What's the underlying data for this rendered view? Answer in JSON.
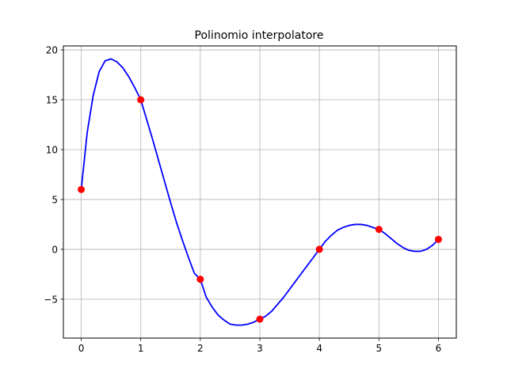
{
  "chart_data": {
    "type": "line",
    "title": "Polinomio interpolatore",
    "xlabel": "",
    "ylabel": "",
    "xlim": [
      -0.3,
      6.3
    ],
    "ylim": [
      -8.9,
      20.4
    ],
    "xticks": [
      0,
      1,
      2,
      3,
      4,
      5,
      6
    ],
    "yticks": [
      -5,
      0,
      5,
      10,
      15,
      20
    ],
    "ytick_labels": [
      "−5",
      "0",
      "5",
      "10",
      "15",
      "20"
    ],
    "grid": true,
    "series": [
      {
        "kind": "line",
        "color": "#0000ff",
        "x": [
          0,
          0.1,
          0.2,
          0.3,
          0.4,
          0.5,
          0.6,
          0.7,
          0.8,
          0.9,
          1.0,
          1.1,
          1.2,
          1.3,
          1.4,
          1.5,
          1.6,
          1.7,
          1.8,
          1.9,
          2.0,
          2.1,
          2.2,
          2.3,
          2.4,
          2.5,
          2.6,
          2.7,
          2.8,
          2.9,
          3.0,
          3.1,
          3.2,
          3.3,
          3.4,
          3.5,
          3.6,
          3.7,
          3.8,
          3.9,
          4.0,
          4.1,
          4.2,
          4.3,
          4.4,
          4.5,
          4.6,
          4.7,
          4.8,
          4.9,
          5.0,
          5.1,
          5.2,
          5.3,
          5.4,
          5.5,
          5.6,
          5.7,
          5.8,
          5.9,
          6.0
        ],
        "y": [
          6.0,
          11.7,
          15.4,
          17.8,
          18.9,
          19.1,
          18.8,
          18.2,
          17.3,
          16.2,
          15.0,
          13.0,
          11.0,
          8.9,
          6.8,
          4.7,
          2.7,
          0.9,
          -0.8,
          -2.4,
          -3.0,
          -4.8,
          -5.8,
          -6.6,
          -7.1,
          -7.5,
          -7.6,
          -7.6,
          -7.5,
          -7.3,
          -7.0,
          -6.7,
          -6.2,
          -5.5,
          -4.8,
          -4.0,
          -3.2,
          -2.4,
          -1.6,
          -0.8,
          0.0,
          0.8,
          1.4,
          1.9,
          2.2,
          2.4,
          2.5,
          2.5,
          2.4,
          2.2,
          2.0,
          1.6,
          1.1,
          0.6,
          0.2,
          -0.1,
          -0.2,
          -0.2,
          0.0,
          0.4,
          1.0
        ]
      },
      {
        "kind": "scatter",
        "color": "#ff0000",
        "x": [
          0,
          1,
          2,
          3,
          4,
          5,
          6
        ],
        "y": [
          6,
          15,
          -3,
          -7,
          0,
          2,
          1
        ]
      }
    ]
  }
}
